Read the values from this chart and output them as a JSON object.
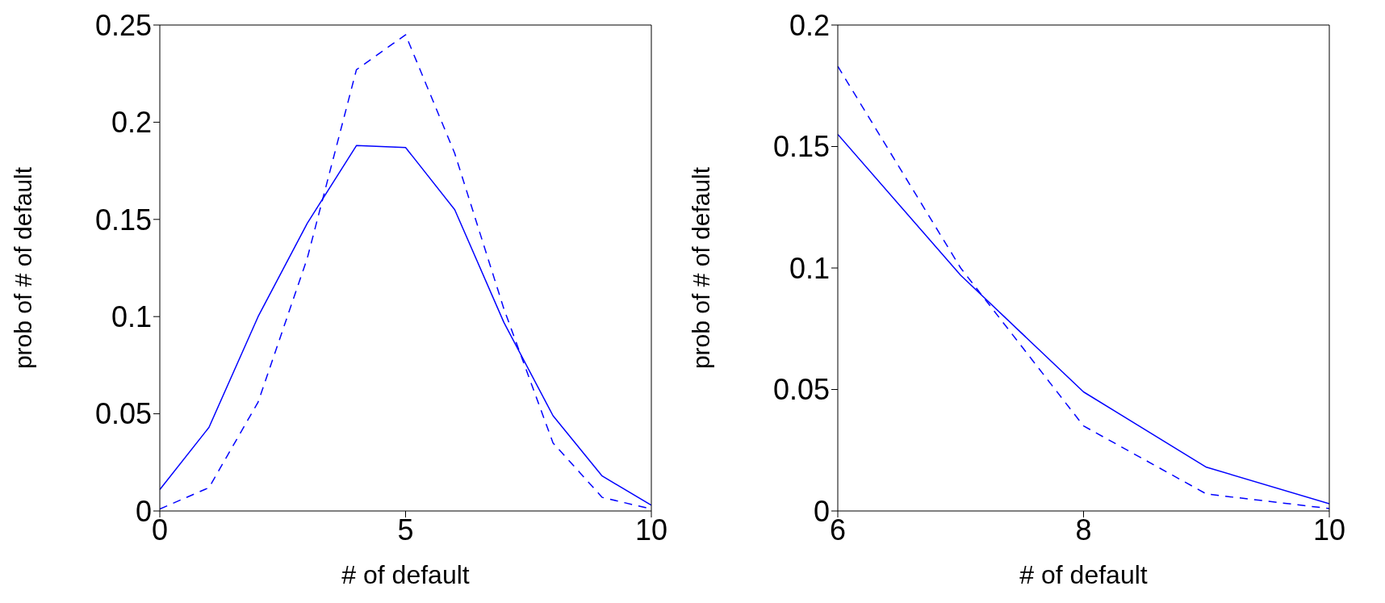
{
  "chart_data": [
    {
      "type": "line",
      "xlabel": "# of default",
      "ylabel": "prob of # of default",
      "x": [
        0,
        1,
        2,
        3,
        4,
        5,
        6,
        7,
        8,
        9,
        10
      ],
      "xlim": [
        0,
        10
      ],
      "xticks": [
        0,
        5,
        10
      ],
      "ylim": [
        0,
        0.25
      ],
      "yticks": [
        0,
        0.05,
        0.1,
        0.15,
        0.2,
        0.25
      ],
      "grid": false,
      "legend": false,
      "series": [
        {
          "color": "#0000ff",
          "line_style": "solid",
          "values": [
            0.011,
            0.043,
            0.1,
            0.148,
            0.188,
            0.187,
            0.155,
            0.097,
            0.049,
            0.018,
            0.003
          ]
        },
        {
          "color": "#0000ff",
          "line_style": "dashed",
          "values": [
            0.001,
            0.012,
            0.056,
            0.13,
            0.227,
            0.245,
            0.184,
            0.104,
            0.035,
            0.007,
            0.001
          ]
        }
      ]
    },
    {
      "type": "line",
      "xlabel": "# of default",
      "ylabel": "prob of # of default",
      "x": [
        6,
        7,
        8,
        9,
        10
      ],
      "xlim": [
        6,
        10
      ],
      "xticks": [
        6,
        8,
        10
      ],
      "ylim": [
        0,
        0.2
      ],
      "yticks": [
        0,
        0.05,
        0.1,
        0.15,
        0.2
      ],
      "grid": false,
      "legend": false,
      "series": [
        {
          "color": "#0000ff",
          "line_style": "solid",
          "values": [
            0.155,
            0.097,
            0.049,
            0.018,
            0.003
          ]
        },
        {
          "color": "#0000ff",
          "line_style": "dashed",
          "values": [
            0.183,
            0.1,
            0.035,
            0.007,
            0.001
          ]
        }
      ]
    }
  ]
}
